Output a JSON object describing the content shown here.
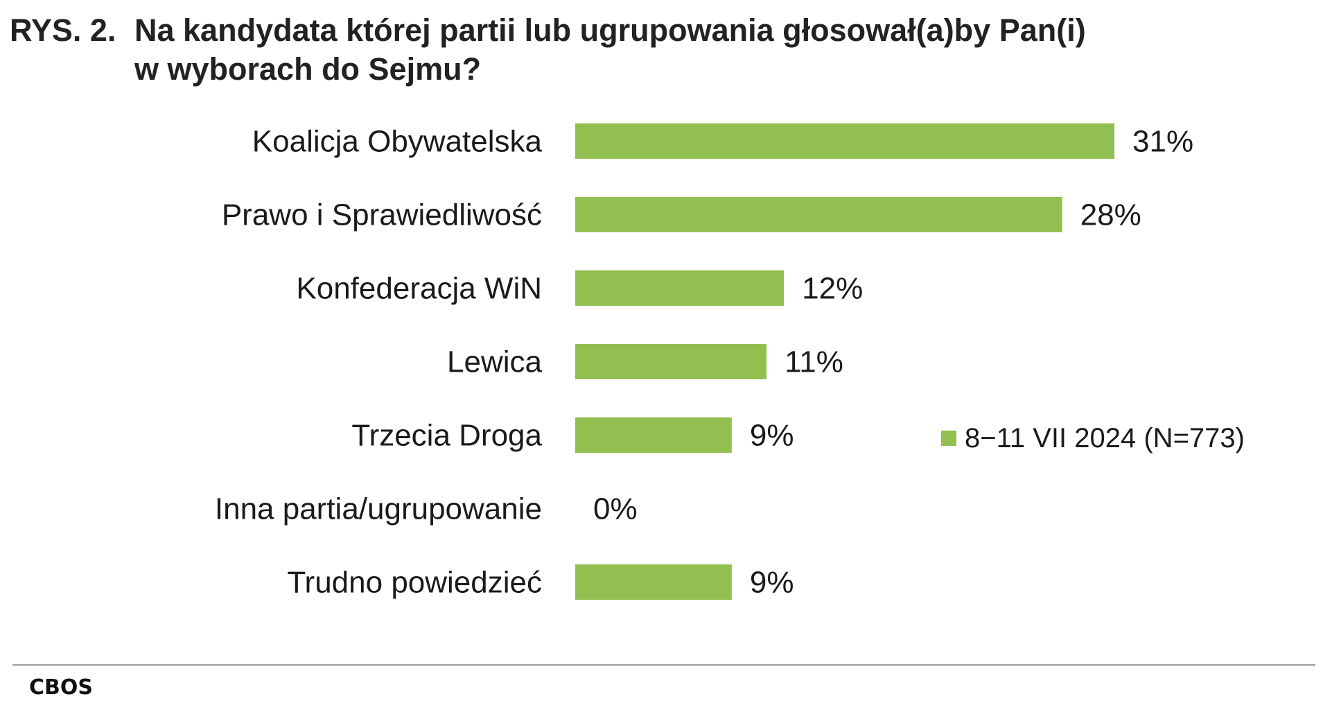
{
  "title": {
    "prefix": "RYS. 2.",
    "line1": "Na kandydata której partii lub ugrupowania głosował(a)by Pan(i)",
    "line2": "w wyborach do Sejmu?"
  },
  "colors": {
    "bar": "#92c050"
  },
  "chart_data": {
    "type": "bar",
    "orientation": "horizontal",
    "categories": [
      "Koalicja Obywatelska",
      "Prawo i Sprawiedliwość",
      "Konfederacja WiN",
      "Lewica",
      "Trzecia Droga",
      "Inna partia/ugrupowanie",
      "Trudno powiedzieć"
    ],
    "series": [
      {
        "name": "8−11 VII 2024 (N=773)",
        "values": [
          31,
          28,
          12,
          11,
          9,
          0,
          9
        ]
      }
    ],
    "value_suffix": "%",
    "xlim": [
      0,
      31
    ],
    "grid": false,
    "legend": "right"
  },
  "source": "CBOS"
}
